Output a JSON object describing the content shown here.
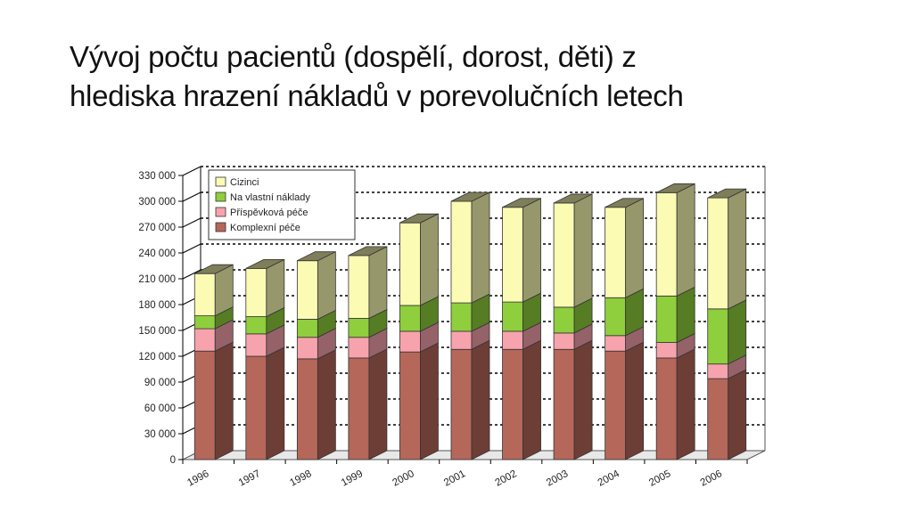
{
  "slide": {
    "title_line1": "Vývoj počtu pacientů (dospělí, dorost, děti) z",
    "title_line2": "hlediska hrazení nákladů v porevolučních letech"
  },
  "chart_data": {
    "type": "bar",
    "stacked": true,
    "three_d": true,
    "categories": [
      "1996",
      "1997",
      "1998",
      "1999",
      "2000",
      "2001",
      "2002",
      "2003",
      "2004",
      "2005",
      "2006"
    ],
    "series": [
      {
        "name": "Komplexní péče",
        "color": "#b5675a",
        "values": [
          126000,
          120000,
          117000,
          118000,
          125000,
          128000,
          128000,
          128000,
          126000,
          118000,
          94000
        ]
      },
      {
        "name": "Příspěvková péče",
        "color": "#f7a3ad",
        "values": [
          26000,
          26000,
          25000,
          24000,
          24000,
          21000,
          21000,
          19000,
          18000,
          18000,
          17000
        ]
      },
      {
        "name": "Na vlastní náklady",
        "color": "#8fce3c",
        "values": [
          15000,
          20000,
          21000,
          22000,
          30000,
          33000,
          34000,
          30000,
          44000,
          54000,
          64000
        ]
      },
      {
        "name": "Cizinci",
        "color": "#fbfbb4",
        "values": [
          49000,
          56000,
          68000,
          73000,
          96000,
          118000,
          110000,
          121000,
          105000,
          120000,
          129000
        ]
      }
    ],
    "ylim": [
      0,
      330000
    ],
    "yticks": [
      "0",
      "30 000",
      "60 000",
      "90 000",
      "120 000",
      "150 000",
      "180 000",
      "210 000",
      "240 000",
      "270 000",
      "300 000",
      "330 000"
    ],
    "grid": true,
    "legend_position": "top-left",
    "legend_order": [
      "Cizinci",
      "Na vlastní náklady",
      "Příspěvková péče",
      "Komplexní péče"
    ]
  }
}
